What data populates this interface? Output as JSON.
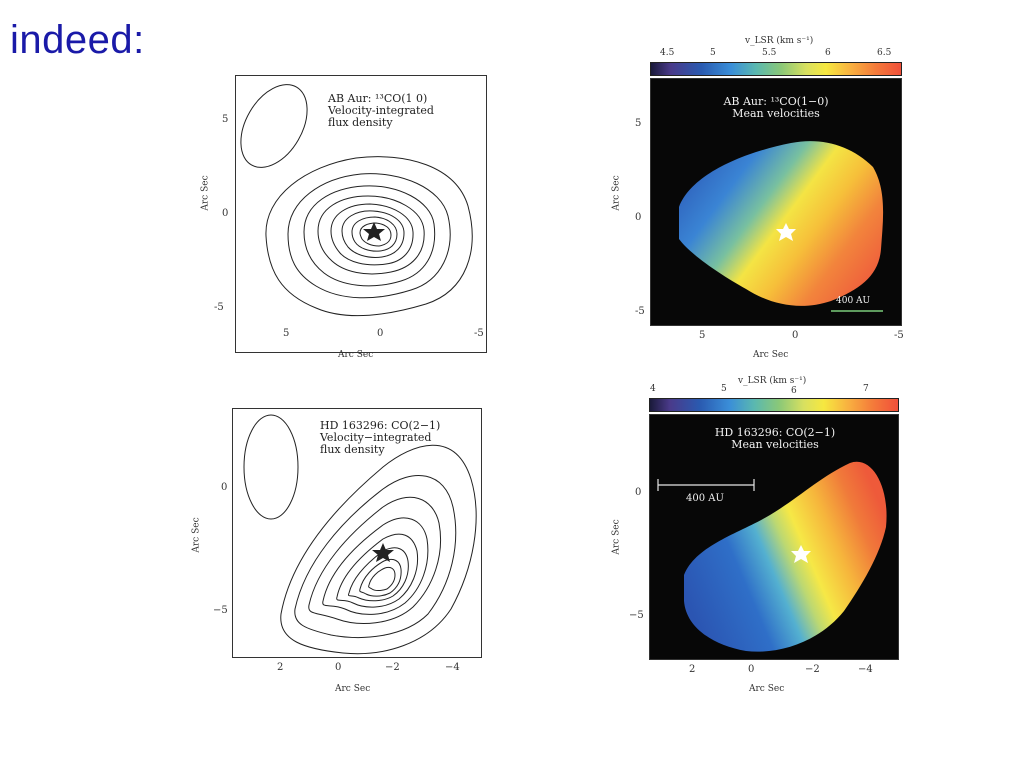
{
  "slide": {
    "title": "indeed:"
  },
  "panels": {
    "ab_contour": {
      "title": "AB Aur: ¹³CO(1 0)\nVelocity-integrated\nflux density",
      "xticks": [
        "5",
        "0",
        "-5"
      ],
      "yticks": [
        "5",
        "0",
        "-5"
      ],
      "xlabel": "Arc Sec",
      "ylabel": "Arc Sec"
    },
    "ab_velocity": {
      "title": "AB Aur: ¹³CO(1−0)\nMean velocities",
      "colorbar_label": "v_LSR (km s⁻¹)",
      "colorbar_ticks": [
        "4.5",
        "5",
        "5.5",
        "6",
        "6.5"
      ],
      "scale_bar": "400 AU",
      "xticks": [
        "5",
        "0",
        "-5"
      ],
      "yticks": [
        "5",
        "0",
        "-5"
      ],
      "xlabel": "Arc Sec",
      "ylabel": "Arc Sec"
    },
    "hd_contour": {
      "title": "HD 163296: CO(2−1)\nVelocity−integrated\nflux density",
      "xticks": [
        "2",
        "0",
        "−2",
        "−4"
      ],
      "yticks": [
        "0",
        "−5"
      ],
      "xlabel": "Arc Sec",
      "ylabel": "Arc Sec"
    },
    "hd_velocity": {
      "title": "HD 163296: CO(2−1)\nMean velocities",
      "colorbar_label": "v_LSR (km s⁻¹)",
      "colorbar_ticks": [
        "4",
        "5",
        "6",
        "7"
      ],
      "scale_bar": "400 AU",
      "xticks": [
        "2",
        "0",
        "−2",
        "−4"
      ],
      "yticks": [
        "0",
        "−5"
      ],
      "xlabel": "Arc Sec",
      "ylabel": "Arc Sec"
    }
  },
  "colors": {
    "title": "#1a1aa8",
    "plot_bg_dark": "#070707",
    "star_dark": "#222222",
    "star_light": "#ffffff"
  }
}
